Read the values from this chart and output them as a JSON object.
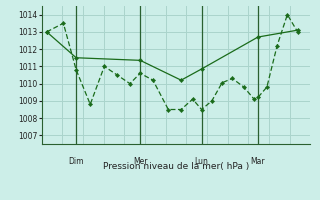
{
  "background_color": "#cceee8",
  "grid_color": "#aad4cc",
  "line_color": "#1a6b1a",
  "xlabel": "Pression niveau de la mer( hPa )",
  "ylim": [
    1006.5,
    1014.5
  ],
  "yticks": [
    1007,
    1008,
    1009,
    1010,
    1011,
    1012,
    1013,
    1014
  ],
  "vline_x": [
    0.135,
    0.385,
    0.625,
    0.845
  ],
  "vline_labels": [
    "Dim",
    "Mer",
    "Lun",
    "Mar"
  ],
  "line1_x": [
    0.02,
    0.085,
    0.135,
    0.19,
    0.245,
    0.295,
    0.345,
    0.385,
    0.435,
    0.495,
    0.545,
    0.59,
    0.625,
    0.665,
    0.705,
    0.745,
    0.79,
    0.83,
    0.845,
    0.88,
    0.92,
    0.96,
    1.0
  ],
  "line1_y": [
    1013.0,
    1013.5,
    1010.8,
    1008.8,
    1011.0,
    1010.5,
    1010.0,
    1010.6,
    1010.2,
    1008.5,
    1008.5,
    1009.1,
    1008.5,
    1009.0,
    1010.05,
    1010.3,
    1009.8,
    1009.1,
    1009.2,
    1009.8,
    1012.2,
    1014.0,
    1013.0
  ],
  "line2_x": [
    0.02,
    0.135,
    0.385,
    0.545,
    0.625,
    0.845,
    1.0
  ],
  "line2_y": [
    1013.0,
    1011.5,
    1011.35,
    1010.2,
    1010.85,
    1012.7,
    1013.1
  ],
  "fig_width": 3.2,
  "fig_height": 2.0,
  "dpi": 100
}
